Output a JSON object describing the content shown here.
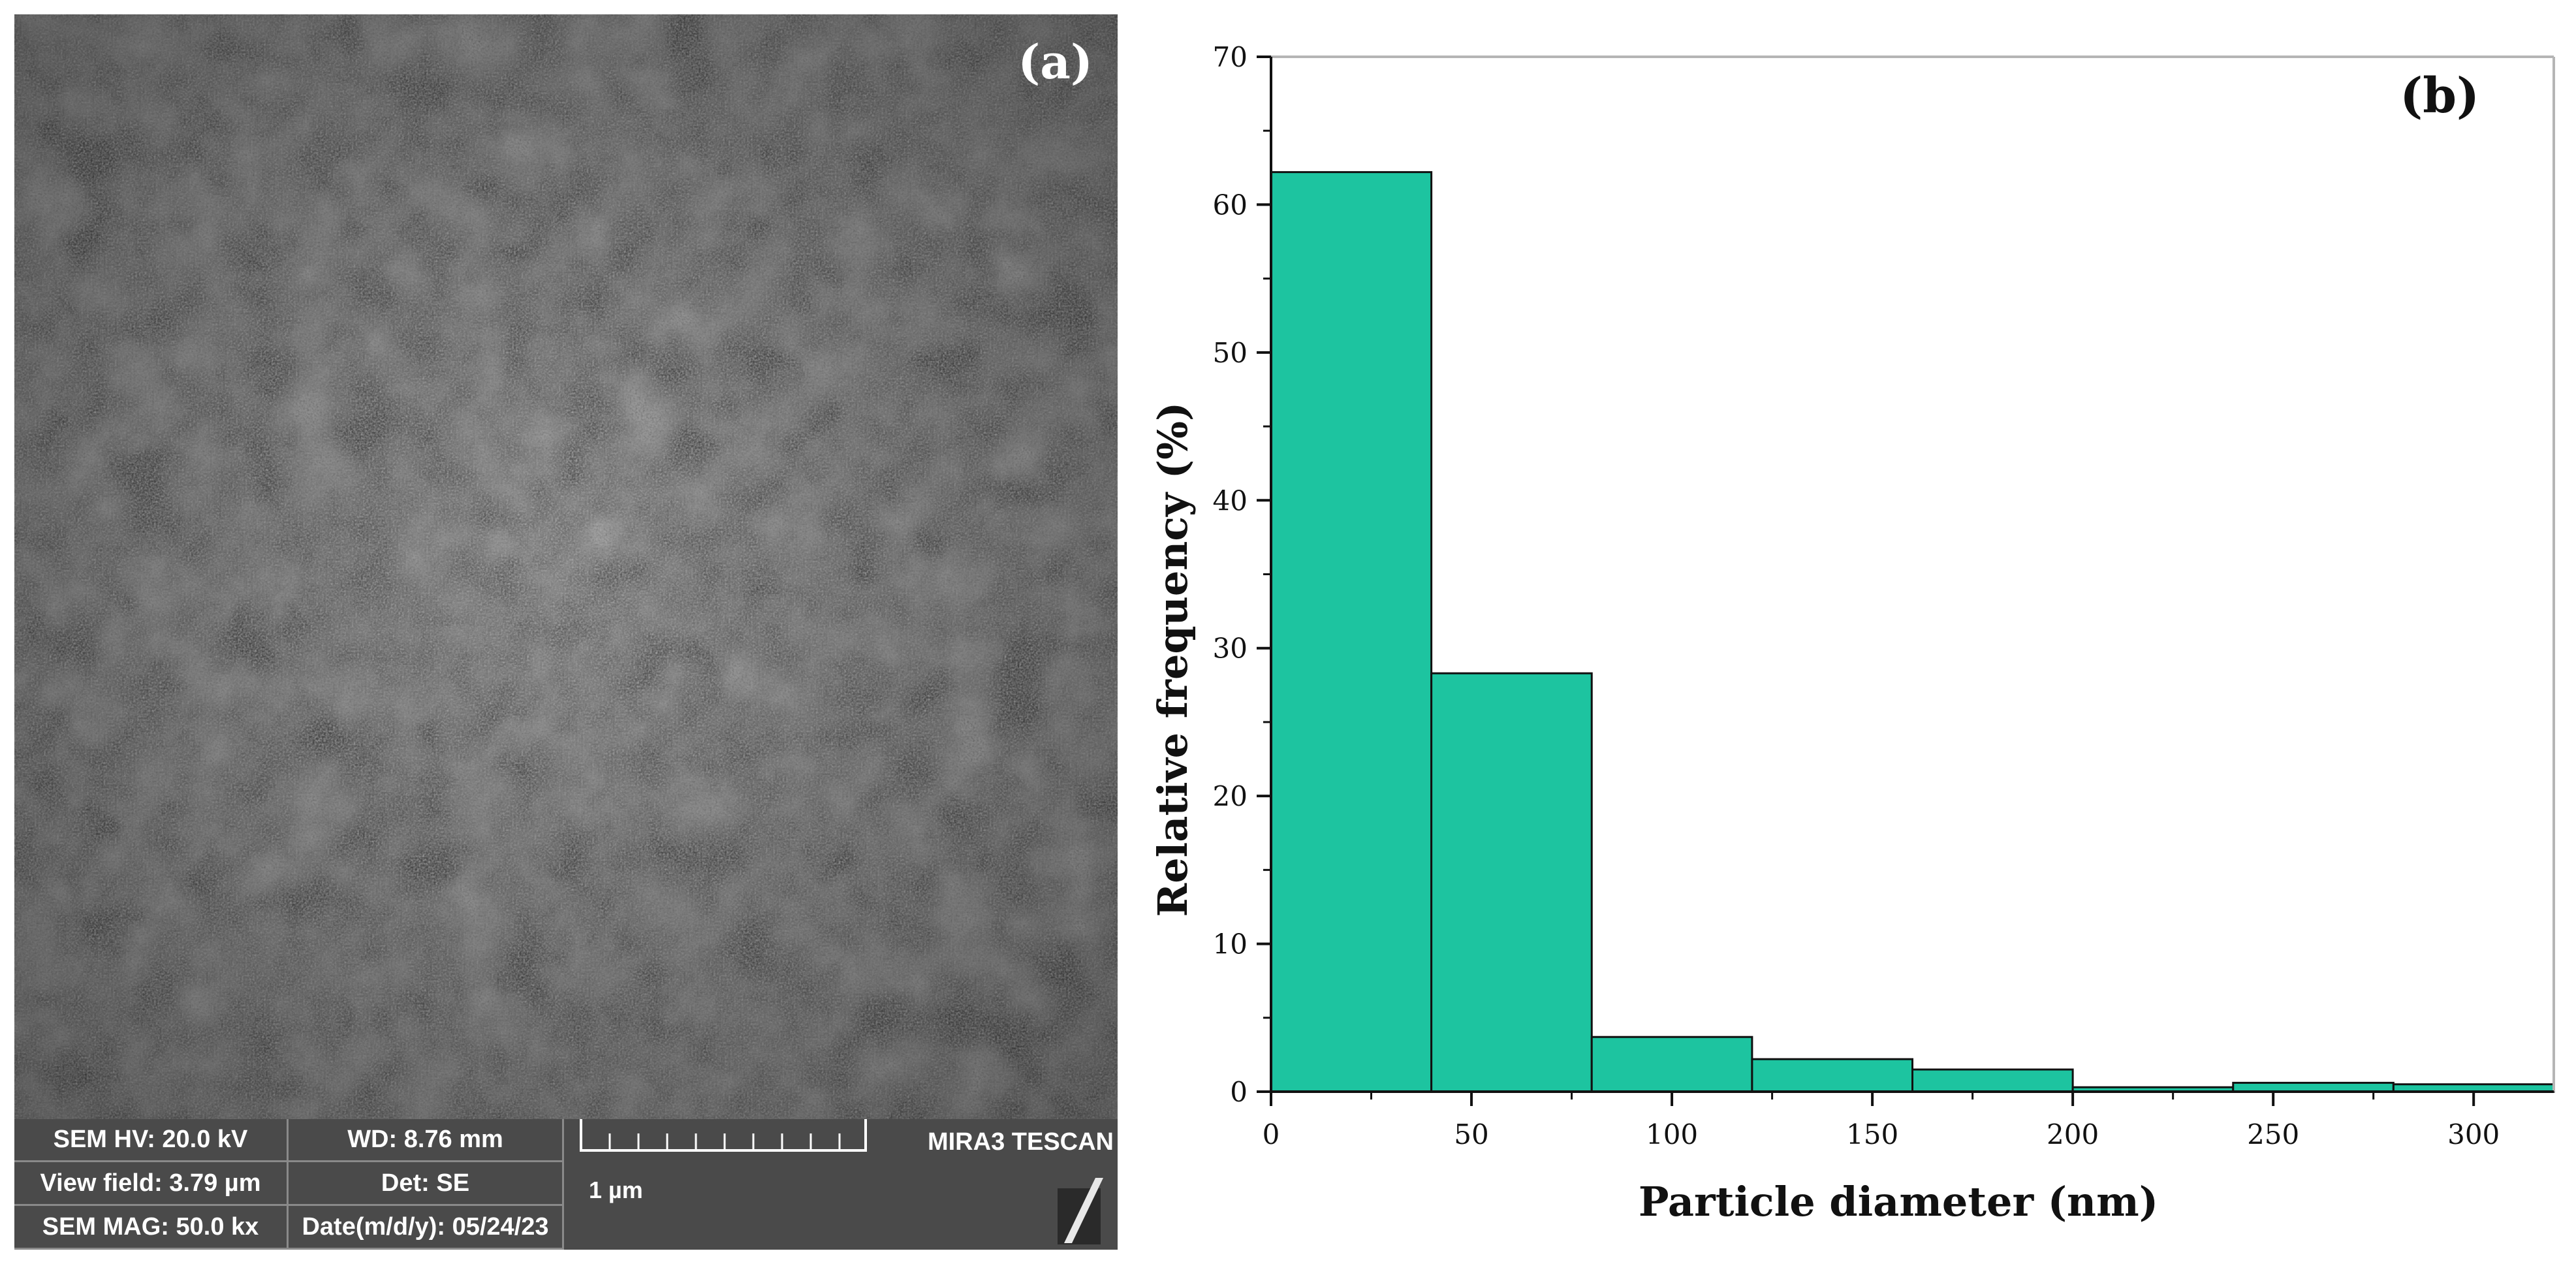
{
  "panel_a": {
    "label": "(a)",
    "info": {
      "hv": "SEM HV: 20.0 kV",
      "wd": "WD: 8.76 mm",
      "view_field": "View field: 3.79 µm",
      "det": "Det: SE",
      "mag": "SEM MAG: 50.0 kx",
      "date": "Date(m/d/y): 05/24/23",
      "scale": "1 µm",
      "brand": "MIRA3 TESCAN"
    }
  },
  "chart_data": {
    "type": "bar",
    "panel_label": "(b)",
    "title": "",
    "xlabel": "Particle diameter (nm)",
    "ylabel": "Relative frequency (%)",
    "bin_edges": [
      0,
      40,
      80,
      120,
      160,
      200,
      240,
      280,
      320
    ],
    "values": [
      62.2,
      28.3,
      3.7,
      2.2,
      1.5,
      0.3,
      0.6,
      0.5
    ],
    "xlim": [
      0,
      320
    ],
    "ylim": [
      0,
      70
    ],
    "xticks": [
      0,
      50,
      100,
      150,
      200,
      250,
      300
    ],
    "yticks": [
      0,
      10,
      20,
      30,
      40,
      50,
      60,
      70
    ],
    "bar_color": "#1dc4a0",
    "grid": false
  }
}
